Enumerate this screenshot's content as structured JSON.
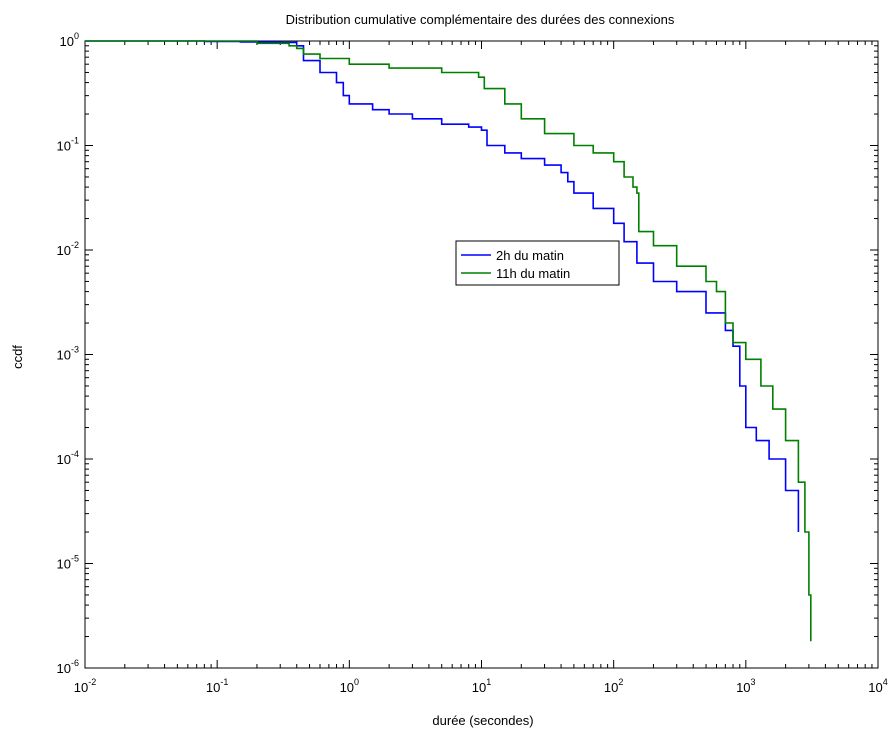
{
  "chart_data": {
    "type": "line",
    "title": "Distribution cumulative complémentaire des durées des connexions",
    "xlabel": "durée (secondes)",
    "ylabel": "ccdf",
    "x_scale": "log",
    "y_scale": "log",
    "xlim": [
      0.01,
      10000
    ],
    "ylim": [
      1e-06,
      1
    ],
    "grid": false,
    "legend_position": "center-right",
    "x_ticks": [
      {
        "base": "10",
        "exp": "-2",
        "value": 0.01
      },
      {
        "base": "10",
        "exp": "-1",
        "value": 0.1
      },
      {
        "base": "10",
        "exp": "0",
        "value": 1
      },
      {
        "base": "10",
        "exp": "1",
        "value": 10
      },
      {
        "base": "10",
        "exp": "2",
        "value": 100
      },
      {
        "base": "10",
        "exp": "3",
        "value": 1000
      },
      {
        "base": "10",
        "exp": "4",
        "value": 10000
      }
    ],
    "y_ticks": [
      {
        "base": "10",
        "exp": "0",
        "value": 1
      },
      {
        "base": "10",
        "exp": "-1",
        "value": 0.1
      },
      {
        "base": "10",
        "exp": "-2",
        "value": 0.01
      },
      {
        "base": "10",
        "exp": "-3",
        "value": 0.001
      },
      {
        "base": "10",
        "exp": "-4",
        "value": 0.0001
      },
      {
        "base": "10",
        "exp": "-5",
        "value": 1e-05
      },
      {
        "base": "10",
        "exp": "-6",
        "value": 1e-06
      }
    ],
    "series": [
      {
        "name": "2h du matin",
        "color": "#0000ff",
        "points": [
          [
            0.01,
            1.0
          ],
          [
            0.045,
            1.0
          ],
          [
            0.08,
            0.99
          ],
          [
            0.15,
            0.98
          ],
          [
            0.3,
            0.97
          ],
          [
            0.4,
            0.9
          ],
          [
            0.45,
            0.65
          ],
          [
            0.6,
            0.5
          ],
          [
            0.8,
            0.4
          ],
          [
            0.9,
            0.3
          ],
          [
            1.0,
            0.25
          ],
          [
            1.5,
            0.22
          ],
          [
            2.0,
            0.2
          ],
          [
            3.0,
            0.18
          ],
          [
            5.0,
            0.16
          ],
          [
            8.0,
            0.15
          ],
          [
            10.0,
            0.14
          ],
          [
            11.0,
            0.1
          ],
          [
            15.0,
            0.085
          ],
          [
            20.0,
            0.075
          ],
          [
            30.0,
            0.065
          ],
          [
            40.0,
            0.055
          ],
          [
            45.0,
            0.045
          ],
          [
            50.0,
            0.035
          ],
          [
            70.0,
            0.025
          ],
          [
            100.0,
            0.018
          ],
          [
            120.0,
            0.012
          ],
          [
            150.0,
            0.0075
          ],
          [
            200.0,
            0.005
          ],
          [
            300.0,
            0.004
          ],
          [
            500.0,
            0.0025
          ],
          [
            700.0,
            0.0017
          ],
          [
            800.0,
            0.0012
          ],
          [
            900.0,
            0.0005
          ],
          [
            1000.0,
            0.0002
          ],
          [
            1200.0,
            0.00015
          ],
          [
            1500.0,
            0.0001
          ],
          [
            2000.0,
            5e-05
          ],
          [
            2500.0,
            2e-05
          ]
        ]
      },
      {
        "name": "11h du matin",
        "color": "#008000",
        "points": [
          [
            0.01,
            1.0
          ],
          [
            0.1,
            1.0
          ],
          [
            0.2,
            0.95
          ],
          [
            0.35,
            0.9
          ],
          [
            0.4,
            0.85
          ],
          [
            0.45,
            0.75
          ],
          [
            0.6,
            0.68
          ],
          [
            1.0,
            0.6
          ],
          [
            2.0,
            0.55
          ],
          [
            5.0,
            0.5
          ],
          [
            9.5,
            0.45
          ],
          [
            10.5,
            0.35
          ],
          [
            15.0,
            0.25
          ],
          [
            20.0,
            0.18
          ],
          [
            30.0,
            0.13
          ],
          [
            50.0,
            0.1
          ],
          [
            70.0,
            0.085
          ],
          [
            100.0,
            0.07
          ],
          [
            120.0,
            0.05
          ],
          [
            140.0,
            0.04
          ],
          [
            150.0,
            0.035
          ],
          [
            155.0,
            0.015
          ],
          [
            200.0,
            0.011
          ],
          [
            300.0,
            0.007
          ],
          [
            500.0,
            0.005
          ],
          [
            600.0,
            0.004
          ],
          [
            700.0,
            0.002
          ],
          [
            800.0,
            0.0013
          ],
          [
            1000.0,
            0.0009
          ],
          [
            1300.0,
            0.0005
          ],
          [
            1600.0,
            0.0003
          ],
          [
            2000.0,
            0.00015
          ],
          [
            2500.0,
            6e-05
          ],
          [
            2800.0,
            2e-05
          ],
          [
            3000.0,
            5e-06
          ],
          [
            3100.0,
            1.8e-06
          ]
        ]
      }
    ]
  }
}
